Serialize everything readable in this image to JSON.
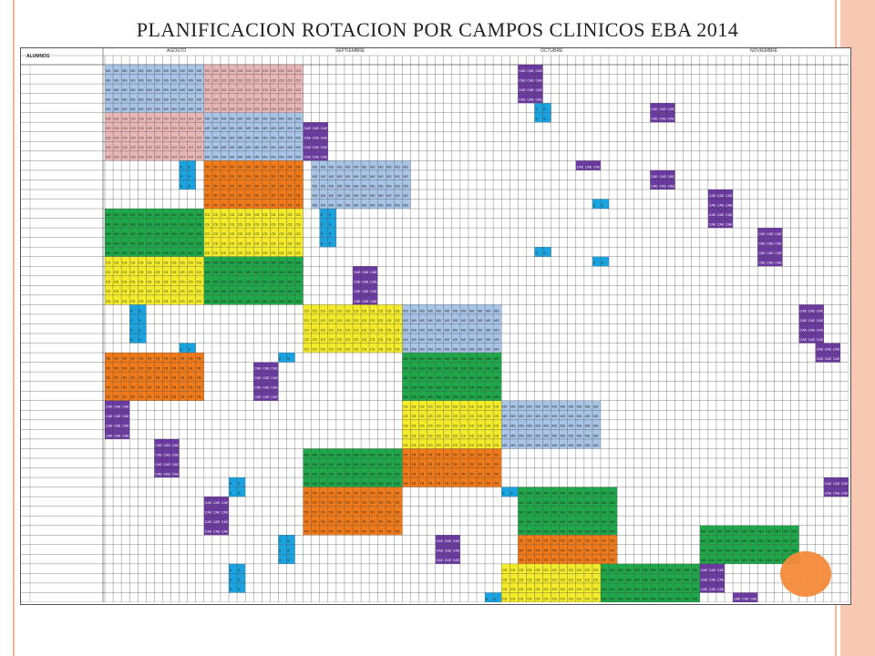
{
  "title": "PLANIFICACION ROTACION  POR CAMPOS CLINICOS  EBA 2014",
  "header": {
    "alumnos_label": "ALUMNOS",
    "months": [
      "AGOSTO",
      "SEPTIEMBRE",
      "OCTUBRE",
      "NOVIEMBRE"
    ]
  },
  "codes": {
    "MS": {
      "label": "MS",
      "color": "#a8c4e6"
    },
    "CO": {
      "label": "CO",
      "color": "#e9b6b6"
    },
    "CAE": {
      "label": "CAE",
      "color": "#6a3aa0"
    },
    "E": {
      "label": "E",
      "color": "#1ba3e0"
    },
    "TR": {
      "label": "TR",
      "color": "#f07a1a"
    },
    "MD": {
      "label": "MD",
      "color": "#1fa84a"
    },
    "CS": {
      "label": "CS",
      "color": "#f4ec2a"
    }
  },
  "rows": [
    [
      [
        "MS",
        0,
        12
      ],
      [
        "CO",
        12,
        12
      ],
      [
        "CAE",
        50,
        3
      ]
    ],
    [
      [
        "MS",
        0,
        12
      ],
      [
        "CO",
        12,
        12
      ],
      [
        "CAE",
        50,
        3
      ]
    ],
    [
      [
        "MS",
        0,
        12
      ],
      [
        "CO",
        12,
        12
      ],
      [
        "CAE",
        50,
        3
      ]
    ],
    [
      [
        "MS",
        0,
        12
      ],
      [
        "CO",
        12,
        12
      ],
      [
        "CAE",
        50,
        3
      ]
    ],
    [
      [
        "MS",
        0,
        12
      ],
      [
        "CO",
        12,
        12
      ],
      [
        "E",
        52,
        2
      ],
      [
        "CAE",
        66,
        3
      ]
    ],
    [
      [
        "CO",
        0,
        12
      ],
      [
        "MS",
        12,
        12
      ],
      [
        "E",
        52,
        2
      ],
      [
        "CAE",
        66,
        3
      ]
    ],
    [
      [
        "CO",
        0,
        12
      ],
      [
        "MS",
        12,
        12
      ],
      [
        "CAE",
        24,
        3
      ]
    ],
    [
      [
        "CO",
        0,
        12
      ],
      [
        "MS",
        12,
        12
      ],
      [
        "CAE",
        24,
        3
      ]
    ],
    [
      [
        "CO",
        0,
        12
      ],
      [
        "MS",
        12,
        12
      ],
      [
        "CAE",
        24,
        3
      ]
    ],
    [
      [
        "CO",
        0,
        12
      ],
      [
        "MS",
        12,
        12
      ],
      [
        "CAE",
        24,
        3
      ]
    ],
    [
      [
        "E",
        9,
        2
      ],
      [
        "TR",
        12,
        12
      ],
      [
        "MS",
        25,
        12
      ],
      [
        "CAE",
        57,
        3
      ]
    ],
    [
      [
        "E",
        9,
        2
      ],
      [
        "TR",
        12,
        12
      ],
      [
        "MS",
        25,
        12
      ],
      [
        "CAE",
        66,
        3
      ]
    ],
    [
      [
        "E",
        9,
        2
      ],
      [
        "TR",
        12,
        12
      ],
      [
        "MS",
        25,
        12
      ],
      [
        "CAE",
        66,
        3
      ]
    ],
    [
      [
        "TR",
        12,
        12
      ],
      [
        "MS",
        25,
        12
      ],
      [
        "CAE",
        73,
        3
      ]
    ],
    [
      [
        "TR",
        12,
        12
      ],
      [
        "MS",
        25,
        12
      ],
      [
        "E",
        59,
        2
      ],
      [
        "CAE",
        73,
        3
      ]
    ],
    [
      [
        "MD",
        0,
        12
      ],
      [
        "CS",
        12,
        12
      ],
      [
        "E",
        26,
        2
      ],
      [
        "CAE",
        73,
        3
      ]
    ],
    [
      [
        "MD",
        0,
        12
      ],
      [
        "CS",
        12,
        12
      ],
      [
        "E",
        26,
        2
      ],
      [
        "CAE",
        73,
        3
      ]
    ],
    [
      [
        "MD",
        0,
        12
      ],
      [
        "CS",
        12,
        12
      ],
      [
        "E",
        26,
        2
      ],
      [
        "CAE",
        79,
        3
      ]
    ],
    [
      [
        "MD",
        0,
        12
      ],
      [
        "CS",
        12,
        12
      ],
      [
        "E",
        26,
        2
      ],
      [
        "CAE",
        79,
        3
      ]
    ],
    [
      [
        "MD",
        0,
        12
      ],
      [
        "CS",
        12,
        12
      ],
      [
        "E",
        52,
        2
      ],
      [
        "CAE",
        79,
        3
      ]
    ],
    [
      [
        "CS",
        0,
        12
      ],
      [
        "MD",
        12,
        12
      ],
      [
        "E",
        59,
        2
      ],
      [
        "CAE",
        79,
        3
      ]
    ],
    [
      [
        "CS",
        0,
        12
      ],
      [
        "MD",
        12,
        12
      ],
      [
        "CAE",
        30,
        3
      ]
    ],
    [
      [
        "CS",
        0,
        12
      ],
      [
        "MD",
        12,
        12
      ],
      [
        "CAE",
        30,
        3
      ]
    ],
    [
      [
        "CS",
        0,
        12
      ],
      [
        "MD",
        12,
        12
      ],
      [
        "CAE",
        30,
        3
      ]
    ],
    [
      [
        "CS",
        0,
        12
      ],
      [
        "MD",
        12,
        12
      ],
      [
        "CAE",
        30,
        3
      ]
    ],
    [
      [
        "E",
        3,
        2
      ],
      [
        "CS",
        24,
        12
      ],
      [
        "MS",
        36,
        12
      ],
      [
        "CAE",
        84,
        3
      ]
    ],
    [
      [
        "E",
        3,
        2
      ],
      [
        "CS",
        24,
        12
      ],
      [
        "MS",
        36,
        12
      ],
      [
        "CAE",
        84,
        3
      ]
    ],
    [
      [
        "E",
        3,
        2
      ],
      [
        "CS",
        24,
        12
      ],
      [
        "MS",
        36,
        12
      ],
      [
        "CAE",
        84,
        3
      ]
    ],
    [
      [
        "E",
        3,
        2
      ],
      [
        "CS",
        24,
        12
      ],
      [
        "MS",
        36,
        12
      ],
      [
        "CAE",
        84,
        3
      ]
    ],
    [
      [
        "E",
        9,
        2
      ],
      [
        "CS",
        24,
        12
      ],
      [
        "MS",
        36,
        12
      ],
      [
        "CAE",
        86,
        3
      ]
    ],
    [
      [
        "TR",
        0,
        12
      ],
      [
        "E",
        21,
        2
      ],
      [
        "MD",
        36,
        12
      ],
      [
        "CAE",
        86,
        3
      ]
    ],
    [
      [
        "TR",
        0,
        12
      ],
      [
        "CAE",
        18,
        3
      ],
      [
        "MD",
        36,
        12
      ]
    ],
    [
      [
        "TR",
        0,
        12
      ],
      [
        "CAE",
        18,
        3
      ],
      [
        "MD",
        36,
        12
      ]
    ],
    [
      [
        "TR",
        0,
        12
      ],
      [
        "CAE",
        18,
        3
      ],
      [
        "MD",
        36,
        12
      ]
    ],
    [
      [
        "TR",
        0,
        12
      ],
      [
        "CAE",
        18,
        3
      ],
      [
        "MD",
        36,
        12
      ]
    ],
    [
      [
        "CAE",
        0,
        3
      ],
      [
        "CS",
        36,
        12
      ],
      [
        "MS",
        48,
        12
      ]
    ],
    [
      [
        "CAE",
        0,
        3
      ],
      [
        "CS",
        36,
        12
      ],
      [
        "MS",
        48,
        12
      ]
    ],
    [
      [
        "CAE",
        0,
        3
      ],
      [
        "CS",
        36,
        12
      ],
      [
        "MS",
        48,
        12
      ]
    ],
    [
      [
        "CAE",
        0,
        3
      ],
      [
        "CS",
        36,
        12
      ],
      [
        "MS",
        48,
        12
      ]
    ],
    [
      [
        "CAE",
        6,
        3
      ],
      [
        "CS",
        36,
        12
      ],
      [
        "MS",
        48,
        12
      ]
    ],
    [
      [
        "CAE",
        6,
        3
      ],
      [
        "MD",
        24,
        12
      ],
      [
        "TR",
        36,
        12
      ]
    ],
    [
      [
        "CAE",
        6,
        3
      ],
      [
        "MD",
        24,
        12
      ],
      [
        "TR",
        36,
        12
      ]
    ],
    [
      [
        "CAE",
        6,
        3
      ],
      [
        "MD",
        24,
        12
      ],
      [
        "TR",
        36,
        12
      ]
    ],
    [
      [
        "E",
        15,
        2
      ],
      [
        "MD",
        24,
        12
      ],
      [
        "TR",
        36,
        12
      ],
      [
        "CAE",
        87,
        3
      ]
    ],
    [
      [
        "E",
        15,
        2
      ],
      [
        "TR",
        24,
        12
      ],
      [
        "E",
        48,
        2
      ],
      [
        "MD",
        50,
        12
      ],
      [
        "CAE",
        87,
        3
      ]
    ],
    [
      [
        "CAE",
        12,
        3
      ],
      [
        "TR",
        24,
        12
      ],
      [
        "MD",
        50,
        12
      ]
    ],
    [
      [
        "CAE",
        12,
        3
      ],
      [
        "TR",
        24,
        12
      ],
      [
        "MD",
        50,
        12
      ]
    ],
    [
      [
        "CAE",
        12,
        3
      ],
      [
        "TR",
        24,
        12
      ],
      [
        "MD",
        50,
        12
      ]
    ],
    [
      [
        "CAE",
        12,
        3
      ],
      [
        "TR",
        24,
        12
      ],
      [
        "MD",
        50,
        12
      ],
      [
        "MD",
        72,
        12
      ]
    ],
    [
      [
        "E",
        21,
        2
      ],
      [
        "CAE",
        40,
        3
      ],
      [
        "TR",
        50,
        12
      ],
      [
        "MD",
        72,
        12
      ]
    ],
    [
      [
        "E",
        21,
        2
      ],
      [
        "CAE",
        40,
        3
      ],
      [
        "TR",
        50,
        12
      ],
      [
        "MD",
        72,
        12
      ]
    ],
    [
      [
        "E",
        21,
        2
      ],
      [
        "CAE",
        40,
        3
      ],
      [
        "TR",
        50,
        12
      ],
      [
        "MD",
        72,
        12
      ]
    ],
    [
      [
        "E",
        15,
        2
      ],
      [
        "CS",
        48,
        12
      ],
      [
        "MD",
        60,
        12
      ],
      [
        "CAE",
        72,
        3
      ]
    ],
    [
      [
        "E",
        15,
        2
      ],
      [
        "CS",
        48,
        12
      ],
      [
        "MD",
        60,
        12
      ],
      [
        "CAE",
        72,
        3
      ]
    ],
    [
      [
        "E",
        15,
        2
      ],
      [
        "CS",
        48,
        12
      ],
      [
        "MD",
        60,
        12
      ],
      [
        "CAE",
        72,
        3
      ]
    ],
    [
      [
        "E",
        46,
        2
      ],
      [
        "CS",
        48,
        12
      ],
      [
        "MD",
        60,
        12
      ],
      [
        "CAE",
        76,
        3
      ]
    ]
  ]
}
